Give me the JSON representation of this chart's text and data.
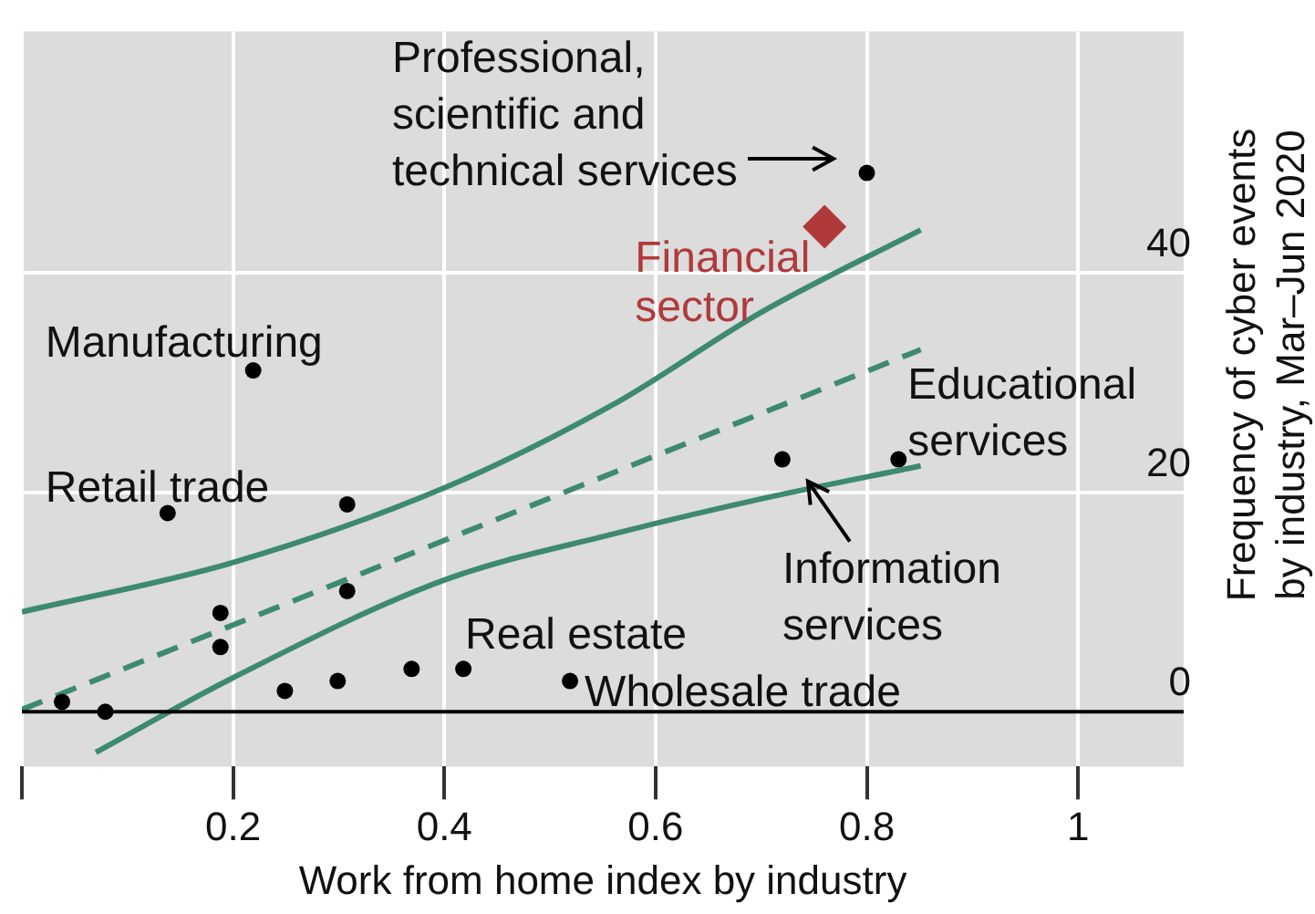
{
  "chart_data": {
    "type": "scatter",
    "xlabel": "Work from home index by industry",
    "ylabel": "Frequency of cyber events by industry, Mar–Jun 2020",
    "xlim": [
      0,
      1.1
    ],
    "ylim": [
      -5,
      62
    ],
    "xticks": [
      {
        "value": 0,
        "label": null
      },
      0.2,
      0.4,
      0.6,
      0.8,
      1.0
    ],
    "yticks": [
      0,
      20,
      40
    ],
    "grid": true,
    "ref_lines": [
      {
        "axis": "y",
        "value": 0,
        "color": "#000000"
      }
    ],
    "series": [
      {
        "type": "scatter",
        "color": "#000000",
        "marker": "circle",
        "x": [
          0.038,
          0.079,
          0.138,
          0.219,
          0.188,
          0.188,
          0.308,
          0.308,
          0.249,
          0.299,
          0.369,
          0.418,
          0.519,
          0.72,
          0.83,
          0.8
        ],
        "values": [
          0.9,
          0,
          18.1,
          31.1,
          9.0,
          5.9,
          18.9,
          11.0,
          1.9,
          2.8,
          3.9,
          3.9,
          2.8,
          23.0,
          23.0,
          49.1
        ]
      },
      {
        "type": "scatter",
        "name": "Financial sector",
        "color": "#b03a3a",
        "marker": "diamond",
        "x": [
          0.76
        ],
        "values": [
          44.2
        ]
      },
      {
        "type": "line",
        "color": "#3d8a6e",
        "marker": "none",
        "line_style": "dashed",
        "x": [
          0,
          0.851
        ],
        "values": [
          0.2,
          33.0
        ]
      },
      {
        "type": "line",
        "color": "#3d8a6e",
        "marker": "none",
        "line_style": "solid",
        "x": [
          0,
          0.2,
          0.4,
          0.56,
          0.7,
          0.851
        ],
        "values": [
          9.1,
          13.6,
          20.4,
          28.0,
          36.4,
          43.9
        ]
      },
      {
        "type": "line",
        "color": "#3d8a6e",
        "marker": "none",
        "line_style": "solid",
        "x": [
          0.07,
          0.2,
          0.4,
          0.56,
          0.7,
          0.851
        ],
        "values": [
          -3.7,
          3.1,
          12.0,
          16.2,
          19.4,
          22.4
        ]
      }
    ],
    "annotations": [
      {
        "text": "Manufacturing",
        "x": 0.219,
        "y": 31.1
      },
      {
        "text": "Retail trade",
        "x": 0.138,
        "y": 18.1
      },
      {
        "text": "Real estate",
        "x": 0.418,
        "y": 3.9
      },
      {
        "text": "Wholesale trade",
        "x": 0.519,
        "y": 2.8
      },
      {
        "text": "Educational services",
        "x": 0.83,
        "y": 23.0
      },
      {
        "text": "Information services",
        "x": 0.72,
        "y": 23.0
      },
      "Professional, scientific and technical services"
    ]
  }
}
